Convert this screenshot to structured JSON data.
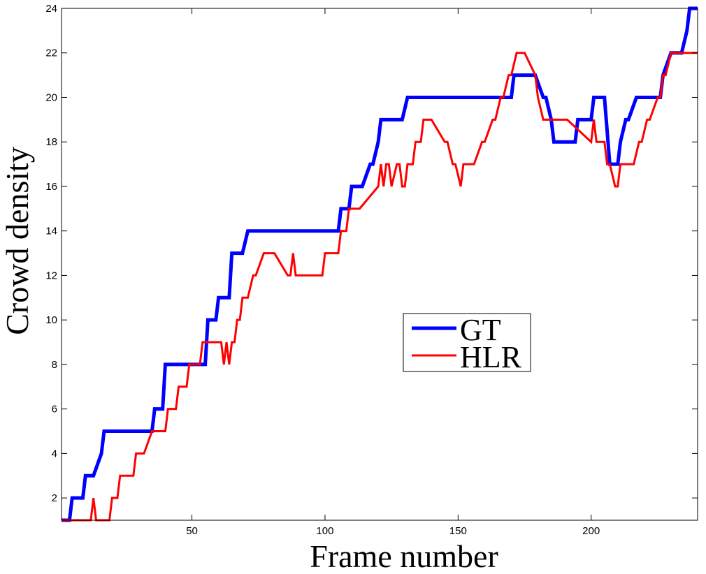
{
  "chart_data": {
    "type": "line",
    "xlabel": "Frame number",
    "ylabel": "Crowd density",
    "xlim": [
      1,
      240
    ],
    "ylim": [
      1,
      24
    ],
    "xticks": [
      50,
      100,
      150,
      200
    ],
    "yticks": [
      2,
      4,
      6,
      8,
      10,
      12,
      14,
      16,
      18,
      20,
      22,
      24
    ],
    "grid": false,
    "legend_position": "center-right",
    "series": [
      {
        "name": "GT",
        "color": "#0000ff",
        "x": [
          1,
          4,
          5,
          8,
          9,
          10,
          12,
          13,
          16,
          17,
          35,
          36,
          39,
          40,
          55,
          56,
          59,
          60,
          64,
          65,
          68,
          69,
          71,
          72,
          105,
          106,
          109,
          110,
          113,
          114,
          117,
          118,
          120,
          121,
          128,
          129,
          131,
          132,
          170,
          171,
          178,
          179,
          182,
          183,
          185,
          186,
          194,
          195,
          197,
          198,
          200,
          201,
          204,
          205,
          207,
          208,
          210,
          211,
          213,
          214,
          217,
          218,
          226,
          227,
          230,
          231,
          233,
          234,
          236,
          237,
          240
        ],
        "y": [
          1,
          1,
          2,
          2,
          2,
          3,
          3,
          3,
          4,
          5,
          5,
          6,
          6,
          8,
          8,
          10,
          10,
          11,
          11,
          13,
          13,
          13,
          14,
          14,
          14,
          15,
          15,
          16,
          16,
          16,
          17,
          17,
          18,
          19,
          19,
          19,
          20,
          20,
          20,
          21,
          21,
          21,
          20,
          20,
          19,
          18,
          18,
          19,
          19,
          19,
          19,
          20,
          20,
          20,
          17,
          17,
          17,
          18,
          19,
          19,
          20,
          20,
          20,
          21,
          22,
          22,
          22,
          22,
          23,
          24,
          24
        ]
      },
      {
        "name": "HLR",
        "color": "#ff0000",
        "x": [
          1,
          7,
          8,
          9,
          10,
          11,
          12,
          13,
          14,
          16,
          17,
          18,
          19,
          20,
          21,
          22,
          23,
          25,
          26,
          28,
          29,
          31,
          32,
          35,
          36,
          40,
          41,
          44,
          45,
          48,
          49,
          53,
          54,
          57,
          58,
          60,
          61,
          62,
          63,
          64,
          65,
          66,
          67,
          68,
          69,
          70,
          71,
          73,
          74,
          77,
          78,
          80,
          81,
          86,
          87,
          88,
          89,
          91,
          92,
          93,
          94,
          99,
          100,
          105,
          106,
          108,
          109,
          110,
          111,
          112,
          113,
          120,
          121,
          122,
          123,
          124,
          125,
          127,
          128,
          129,
          130,
          131,
          132,
          133,
          134,
          135,
          136,
          137,
          138,
          139,
          140,
          145,
          146,
          148,
          149,
          151,
          152,
          153,
          154,
          155,
          156,
          159,
          160,
          163,
          164,
          166,
          167,
          169,
          170,
          172,
          173,
          174,
          175,
          179,
          180,
          182,
          183,
          186,
          187,
          190,
          191,
          200,
          201,
          202,
          203,
          204,
          205,
          206,
          207,
          209,
          210,
          211,
          212,
          215,
          216,
          218,
          219,
          221,
          222,
          225,
          226,
          227,
          228,
          230,
          231,
          240
        ],
        "y": [
          1,
          1,
          1,
          1,
          1,
          1,
          1,
          2,
          1,
          1,
          1,
          1,
          1,
          2,
          2,
          2,
          3,
          3,
          3,
          3,
          4,
          4,
          4,
          5,
          5,
          5,
          6,
          6,
          7,
          7,
          8,
          8,
          9,
          9,
          9,
          9,
          9,
          8,
          9,
          8,
          9,
          9,
          10,
          10,
          11,
          11,
          11,
          12,
          12,
          13,
          13,
          13,
          13,
          12,
          12,
          13,
          12,
          12,
          12,
          12,
          12,
          12,
          13,
          13,
          14,
          14,
          15,
          15,
          15,
          15,
          15,
          16,
          17,
          16,
          17,
          17,
          16,
          17,
          17,
          16,
          16,
          17,
          17,
          17,
          18,
          18,
          18,
          19,
          19,
          19,
          19,
          18,
          18,
          17,
          17,
          16,
          17,
          17,
          17,
          17,
          17,
          18,
          18,
          19,
          19,
          20,
          20,
          21,
          21,
          22,
          22,
          22,
          22,
          21,
          20,
          19,
          19,
          19,
          19,
          19,
          19,
          18,
          19,
          18,
          18,
          18,
          18,
          17,
          17,
          16,
          16,
          17,
          17,
          17,
          17,
          18,
          18,
          19,
          19,
          20,
          20,
          21,
          21,
          22,
          22,
          22
        ]
      }
    ]
  }
}
